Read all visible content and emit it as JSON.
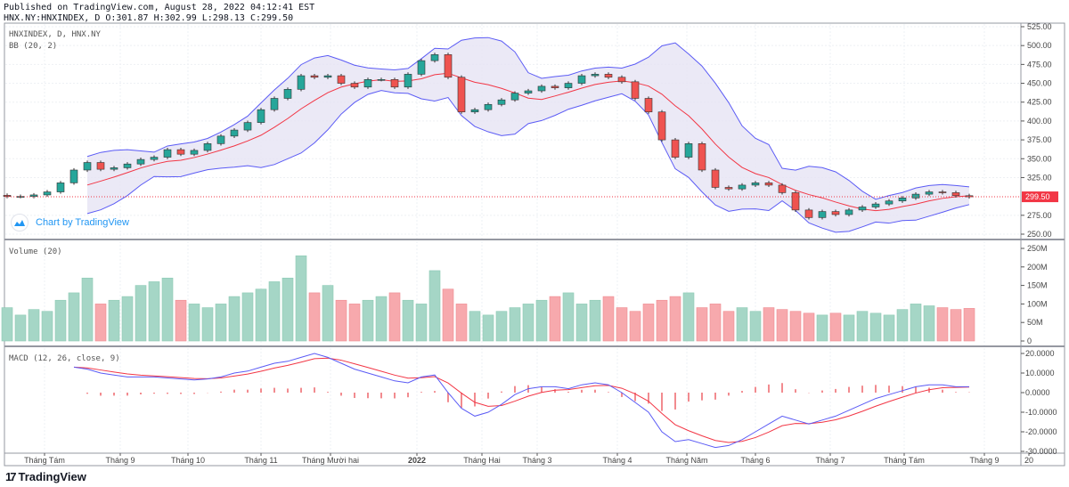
{
  "header": {
    "published": "Published on TradingView.com, August 28, 2022 04:12:41 EST",
    "ohlc": "HNX.NY:HNXINDEX, D O:301.87 H:302.99 L:298.13 C:299.50"
  },
  "panes": {
    "price_title": "HNXINDEX, D, HNX.NY",
    "bb_title": "BB (20, 2)",
    "volume_title": "Volume (20)",
    "macd_title": "MACD (12, 26, close, 9)"
  },
  "watermark": {
    "chart_by": "Chart by TradingView",
    "brand": "TradingView"
  },
  "colors": {
    "up": "#26a69a",
    "down": "#ef5350",
    "bb_band": "#5b5bf5",
    "bb_basis": "#f23645",
    "bb_fill": "#e6e4f4",
    "macd": "#5b5bf5",
    "signal": "#f23645",
    "last_price": "#f23645"
  },
  "chart_data": {
    "type": "candlestick",
    "symbol": "HNXINDEX",
    "last_price": 299.5,
    "last_price_label": "299.50",
    "price_axis": {
      "ticks": [
        "525.00",
        "500.00",
        "475.00",
        "450.00",
        "425.00",
        "400.00",
        "375.00",
        "350.00",
        "325.00",
        "275.00",
        "250.00"
      ],
      "ylim": [
        250,
        525
      ]
    },
    "volume_axis": {
      "ticks": [
        "250M",
        "200M",
        "150M",
        "100M",
        "50M",
        "0"
      ],
      "ylim": [
        0,
        250
      ]
    },
    "macd_axis": {
      "ticks": [
        "20.0000",
        "10.0000",
        "0.0000",
        "-10.0000",
        "-20.0000",
        "-30.0000"
      ],
      "ylim": [
        -30,
        20
      ]
    },
    "time_axis": [
      "Tháng Tám",
      "Tháng 9",
      "Tháng 10",
      "Tháng 11",
      "Tháng Mười hai",
      "2022",
      "Tháng Hai",
      "Tháng 3",
      "Tháng 4",
      "Tháng Năm",
      "Tháng 6",
      "Tháng 7",
      "Tháng Tám",
      "Tháng 9",
      "20"
    ],
    "close": [
      300,
      300,
      302,
      306,
      318,
      335,
      345,
      336,
      338,
      343,
      349,
      352,
      362,
      356,
      361,
      370,
      380,
      388,
      398,
      415,
      430,
      442,
      460,
      458,
      460,
      450,
      445,
      455,
      455,
      445,
      462,
      480,
      488,
      458,
      412,
      415,
      422,
      428,
      437,
      440,
      446,
      444,
      450,
      460,
      462,
      458,
      452,
      430,
      412,
      375,
      352,
      370,
      335,
      312,
      310,
      315,
      318,
      315,
      305,
      282,
      272,
      280,
      276,
      282,
      286,
      290,
      294,
      298,
      303,
      306,
      305,
      301,
      299.5
    ],
    "volume_millions": [
      90,
      70,
      85,
      80,
      110,
      130,
      170,
      100,
      110,
      120,
      150,
      160,
      170,
      110,
      100,
      90,
      100,
      120,
      130,
      140,
      160,
      170,
      230,
      130,
      150,
      110,
      100,
      110,
      120,
      130,
      110,
      100,
      190,
      140,
      100,
      80,
      70,
      80,
      90,
      100,
      110,
      120,
      130,
      100,
      110,
      120,
      90,
      80,
      100,
      110,
      120,
      130,
      90,
      100,
      80,
      90,
      80,
      90,
      85,
      80,
      75,
      70,
      75,
      70,
      80,
      75,
      70,
      85,
      100,
      95,
      90,
      85,
      88
    ],
    "macd": [
      null,
      null,
      null,
      null,
      null,
      13,
      12,
      10,
      9,
      8,
      8,
      8,
      7.5,
      7,
      6.5,
      7,
      8,
      10,
      11,
      13,
      15,
      16,
      18,
      20,
      18,
      15,
      12,
      10,
      8,
      6,
      5,
      8,
      9,
      0,
      -8,
      -12,
      -10,
      -6,
      -1,
      2,
      3,
      3,
      2,
      4,
      5,
      4,
      0,
      -5,
      -10,
      -20,
      -25,
      -24,
      -26,
      -28,
      -27,
      -24,
      -20,
      -16,
      -12,
      -14,
      -16,
      -14,
      -12,
      -9,
      -6,
      -3,
      -1,
      1,
      3,
      4,
      4,
      3,
      3
    ]
  }
}
